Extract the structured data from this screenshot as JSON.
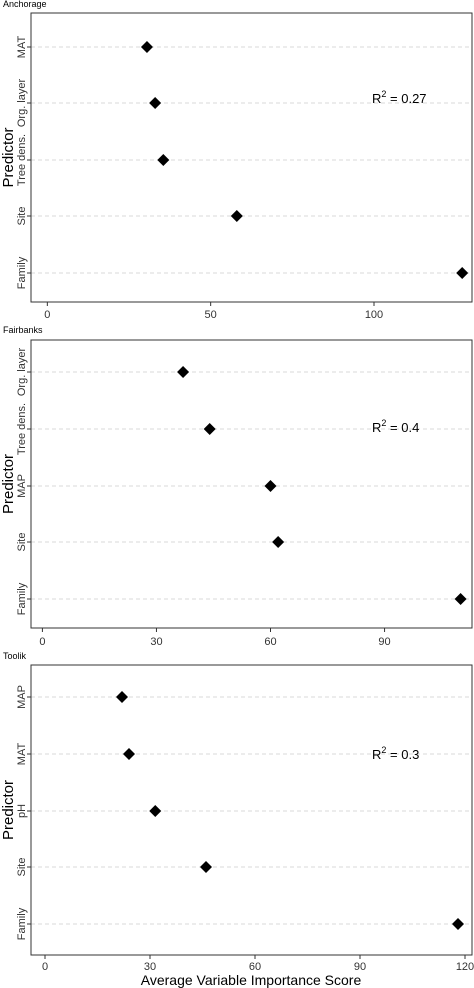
{
  "ylabel": "Predictor",
  "xlabel": "Average Variable Importance Score",
  "chart_data": [
    {
      "type": "scatter",
      "title": "Anchorage",
      "categories": [
        "MAT",
        "Org. layer",
        "Tree dens.",
        "Site",
        "Family"
      ],
      "values": [
        30.5,
        33,
        35.5,
        58,
        127
      ],
      "xlim": [
        -5,
        130
      ],
      "xticks": [
        0,
        50,
        100
      ],
      "annotation": {
        "prefix": "R",
        "sup": "2",
        "value": " = 0.27"
      },
      "grid": true
    },
    {
      "type": "scatter",
      "title": "Fairbanks",
      "categories": [
        "Org. layer",
        "Tree dens.",
        "MAP",
        "Site",
        "Family"
      ],
      "values": [
        37,
        44,
        60,
        62,
        110
      ],
      "xlim": [
        -3,
        113
      ],
      "xticks": [
        0,
        30,
        60,
        90
      ],
      "annotation": {
        "prefix": "R",
        "sup": "2",
        "value": " = 0.4"
      },
      "grid": true
    },
    {
      "type": "scatter",
      "title": "Toolik",
      "categories": [
        "MAP",
        "MAT",
        "pH",
        "Site",
        "Family"
      ],
      "values": [
        22,
        24,
        31.5,
        46,
        118
      ],
      "xlim": [
        -4,
        122
      ],
      "xticks": [
        0,
        30,
        60,
        90,
        120
      ],
      "annotation": {
        "prefix": "R",
        "sup": "2",
        "value": " = 0.3"
      },
      "grid": true
    }
  ]
}
